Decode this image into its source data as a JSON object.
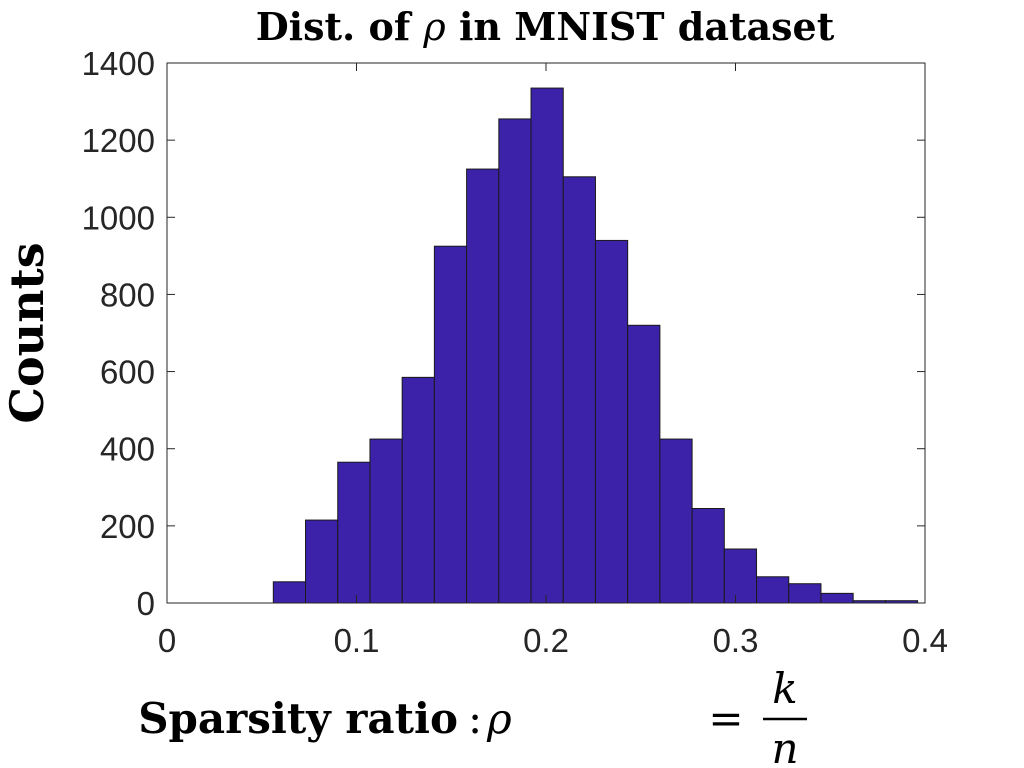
{
  "chart_data": {
    "type": "bar",
    "title": "Dist. of ρ in MNIST dataset",
    "title_prefix": "Dist. of ",
    "title_symbol": "ρ",
    "title_suffix": " in MNIST dataset",
    "xlabel": "Sparsity ratio : ρ = k/n",
    "xlabel_text": "Sparsity ratio",
    "xlabel_colon": ":",
    "xlabel_symbol": "ρ",
    "xlabel_equals": "=",
    "xlabel_numerator": "k",
    "xlabel_denominator": "n",
    "ylabel": "Counts",
    "xlim": [
      0,
      0.4
    ],
    "ylim": [
      0,
      1400
    ],
    "xticks": [
      0,
      0.1,
      0.2,
      0.3,
      0.4
    ],
    "xtick_labels": [
      "0",
      "0.1",
      "0.2",
      "0.3",
      "0.4"
    ],
    "yticks": [
      0,
      200,
      400,
      600,
      800,
      1000,
      1200,
      1400
    ],
    "ytick_labels": [
      "0",
      "200",
      "400",
      "600",
      "800",
      "1000",
      "1200",
      "1400"
    ],
    "bin_edges": [
      0.0561,
      0.0731,
      0.0901,
      0.1071,
      0.1241,
      0.1411,
      0.1581,
      0.1751,
      0.1921,
      0.2091,
      0.2261,
      0.2431,
      0.2601,
      0.2771,
      0.2941,
      0.3111,
      0.3281,
      0.3451,
      0.3621,
      0.3791,
      0.3961
    ],
    "values": [
      55,
      215,
      365,
      425,
      585,
      925,
      1125,
      1255,
      1335,
      1105,
      940,
      720,
      425,
      245,
      140,
      68,
      50,
      25,
      6,
      6
    ],
    "bar_color": "#3b22a8",
    "bar_edge_color": "#1a1a1a",
    "grid": false,
    "box": true
  }
}
